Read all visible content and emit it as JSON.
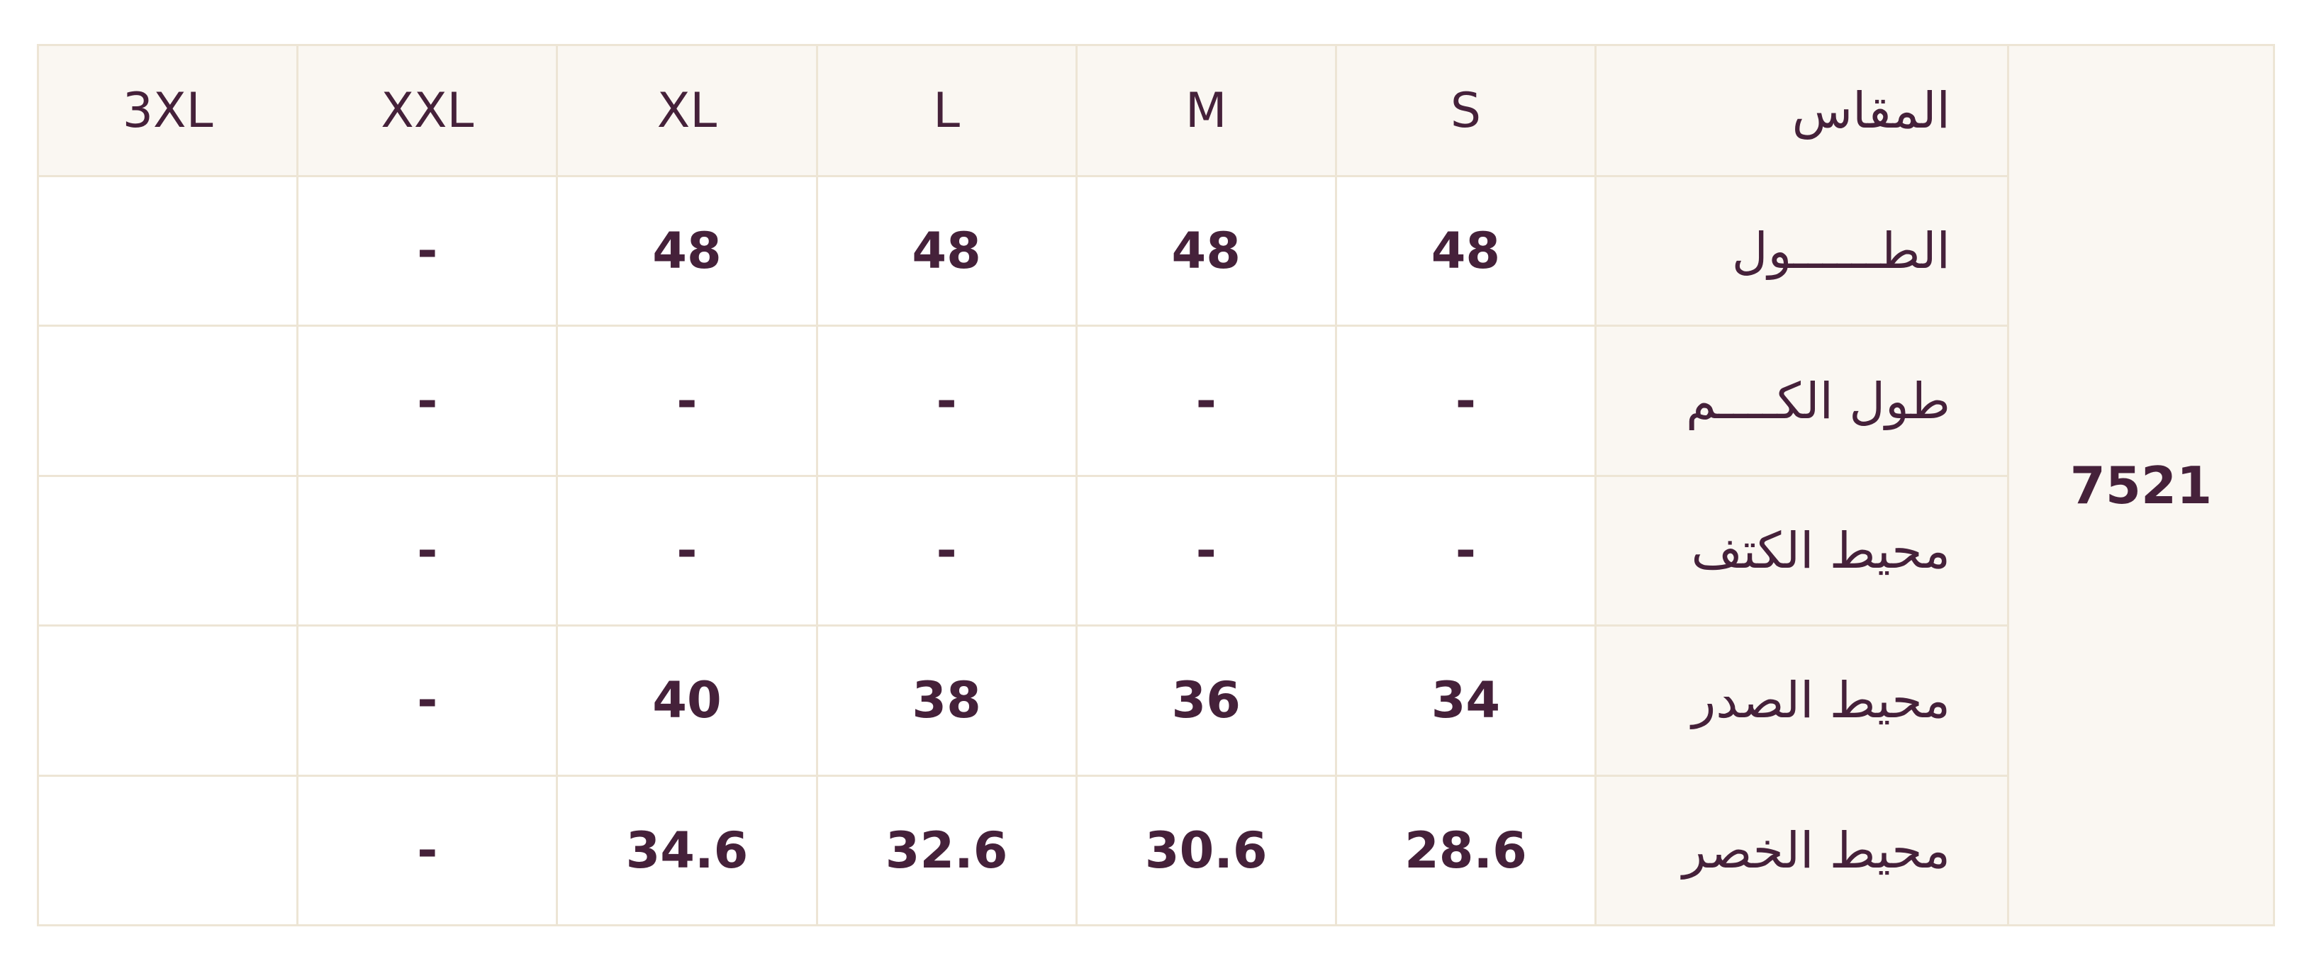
{
  "table": {
    "code": "7521",
    "header_label": "المقاس",
    "sizes": [
      "S",
      "M",
      "L",
      "XL",
      "XXL",
      "3XL"
    ],
    "rows": [
      {
        "label": "الطــــــول",
        "values": [
          "48",
          "48",
          "48",
          "48",
          "-",
          ""
        ]
      },
      {
        "label": "طول الكــــم",
        "values": [
          "-",
          "-",
          "-",
          "-",
          "-",
          ""
        ]
      },
      {
        "label": "محيط الكتف",
        "values": [
          "-",
          "-",
          "-",
          "-",
          "-",
          ""
        ]
      },
      {
        "label": "محيط الصدر",
        "values": [
          "34",
          "36",
          "38",
          "40",
          "-",
          ""
        ]
      },
      {
        "label": "محيط الخصر",
        "values": [
          "28.6",
          "30.6",
          "32.6",
          "34.6",
          "-",
          ""
        ]
      }
    ]
  },
  "colors": {
    "text": "#45213a",
    "border": "#ede5d5",
    "header_bg": "#faf7f2"
  }
}
